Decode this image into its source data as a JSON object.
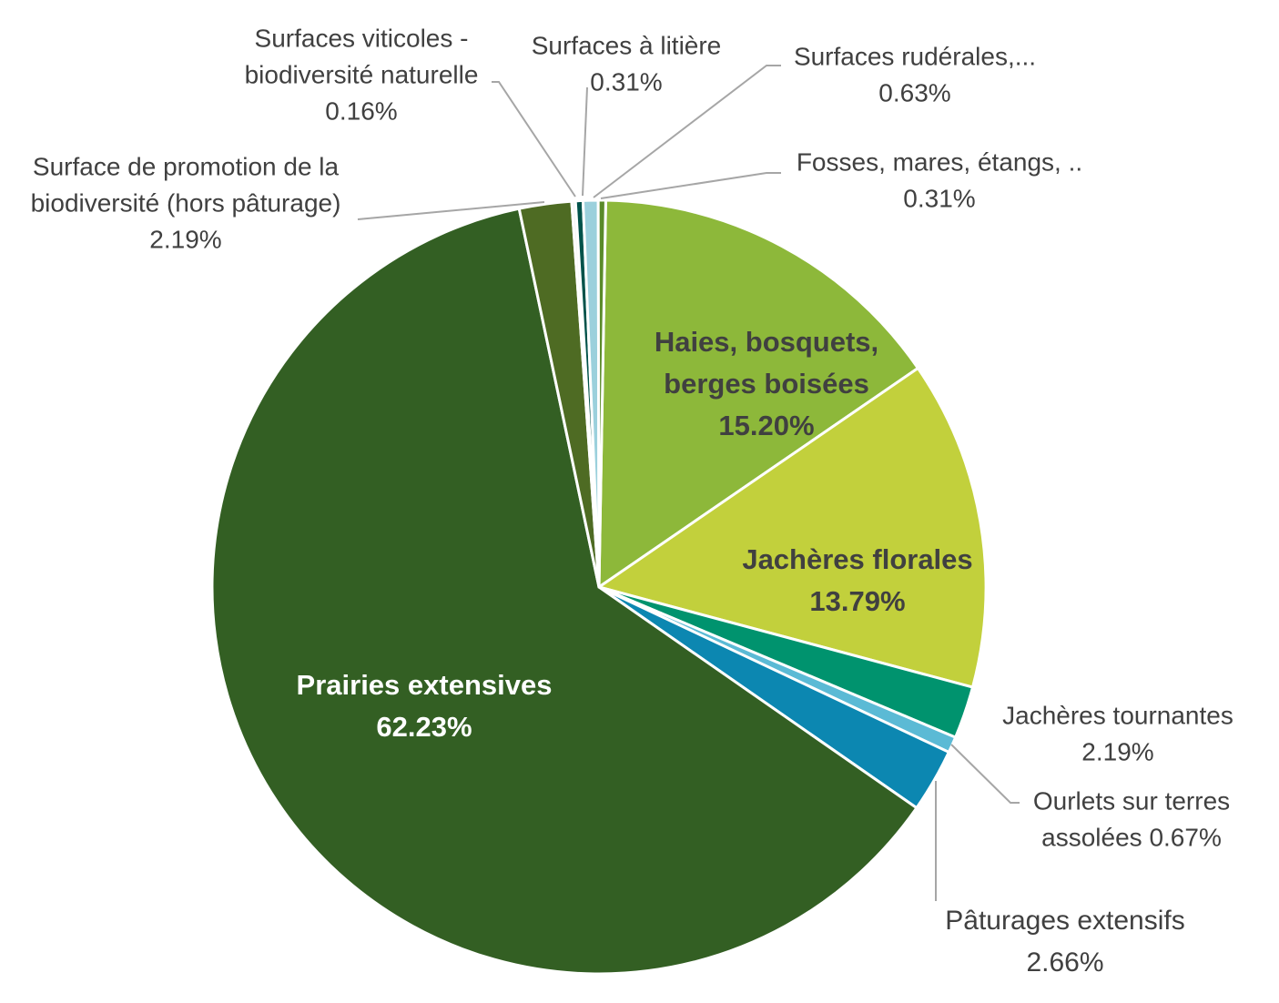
{
  "chart_data": {
    "type": "pie",
    "title": "",
    "slices": [
      {
        "label": "Haies, bosquets, berges boisées",
        "value": 15.2,
        "value_label": "15.20%",
        "color": "#8db83a"
      },
      {
        "label": "Jachères florales",
        "value": 13.79,
        "value_label": "13.79%",
        "color": "#c2d03c"
      },
      {
        "label": "Jachères tournantes",
        "value": 2.19,
        "value_label": "2.19%",
        "color": "#00936e"
      },
      {
        "label": "Ourlets sur terres assolées",
        "value": 0.67,
        "value_label": "0.67%",
        "color": "#5bbad5"
      },
      {
        "label": "Pâturages extensifs",
        "value": 2.66,
        "value_label": "2.66%",
        "color": "#0c87b1"
      },
      {
        "label": "Prairies extensives",
        "value": 62.23,
        "value_label": "62.23%",
        "color": "#335f23"
      },
      {
        "label": "Surface de promotion de la biodiversité (hors pâturage)",
        "value": 2.19,
        "value_label": "2.19%",
        "color": "#4e6b23"
      },
      {
        "label": "Surfaces viticoles - biodiversité naturelle",
        "value": 0.16,
        "value_label": "0.16%",
        "color": "#f2f2f2"
      },
      {
        "label": "Surfaces à litière",
        "value": 0.31,
        "value_label": "0.31%",
        "color": "#00524a"
      },
      {
        "label": "Surfaces rudérales,...",
        "value": 0.63,
        "value_label": "0.63%",
        "color": "#9bd0dc"
      },
      {
        "label": "Fosses, mares, étangs, ..",
        "value": 0.31,
        "value_label": "0.31%",
        "color": "#5a8a2a"
      }
    ],
    "label_lines": {
      "haies": [
        "Haies, bosquets,",
        "berges boisées",
        "15.20%"
      ],
      "jacheres_florales": [
        "Jachères florales",
        "13.79%"
      ],
      "jacheres_tournantes": [
        "Jachères tournantes",
        "2.19%"
      ],
      "ourlets": [
        "Ourlets sur terres",
        "assolées 0.67%"
      ],
      "paturages": [
        "Pâturages extensifs",
        "2.66%"
      ],
      "prairies": [
        "Prairies extensives",
        "62.23%"
      ],
      "promotion": [
        "Surface de promotion de la",
        "biodiversité (hors pâturage)",
        "2.19%"
      ],
      "viticoles": [
        "Surfaces viticoles -",
        "biodiversité naturelle",
        "0.16%"
      ],
      "litiere": [
        "Surfaces à litière",
        "0.31%"
      ],
      "ruderales": [
        "Surfaces rudérales,...",
        "0.63%"
      ],
      "fosses": [
        "Fosses, mares, étangs, ..",
        "0.31%"
      ]
    }
  }
}
